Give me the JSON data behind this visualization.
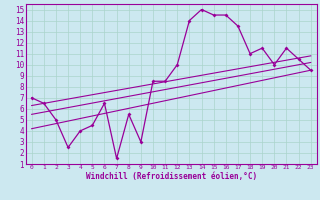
{
  "xlabel": "Windchill (Refroidissement éolien,°C)",
  "bg_color": "#cce8f0",
  "line_color": "#990099",
  "grid_color": "#aad4cc",
  "xlim": [
    -0.5,
    23.5
  ],
  "ylim": [
    1,
    15.5
  ],
  "xticks": [
    0,
    1,
    2,
    3,
    4,
    5,
    6,
    7,
    8,
    9,
    10,
    11,
    12,
    13,
    14,
    15,
    16,
    17,
    18,
    19,
    20,
    21,
    22,
    23
  ],
  "yticks": [
    1,
    2,
    3,
    4,
    5,
    6,
    7,
    8,
    9,
    10,
    11,
    12,
    13,
    14,
    15
  ],
  "main_x": [
    0,
    1,
    2,
    3,
    4,
    5,
    6,
    7,
    8,
    9,
    10,
    11,
    12,
    13,
    14,
    15,
    16,
    17,
    18,
    19,
    20,
    21,
    22,
    23
  ],
  "main_y": [
    7.0,
    6.5,
    5.0,
    2.5,
    4.0,
    4.5,
    6.5,
    1.5,
    5.5,
    3.0,
    8.5,
    8.5,
    10.0,
    14.0,
    15.0,
    14.5,
    14.5,
    13.5,
    11.0,
    11.5,
    10.0,
    11.5,
    10.5,
    9.5
  ],
  "line1_x": [
    0,
    23
  ],
  "line1_y": [
    6.3,
    10.8
  ],
  "line2_x": [
    0,
    23
  ],
  "line2_y": [
    5.5,
    10.2
  ],
  "line3_x": [
    0,
    23
  ],
  "line3_y": [
    4.2,
    9.5
  ]
}
